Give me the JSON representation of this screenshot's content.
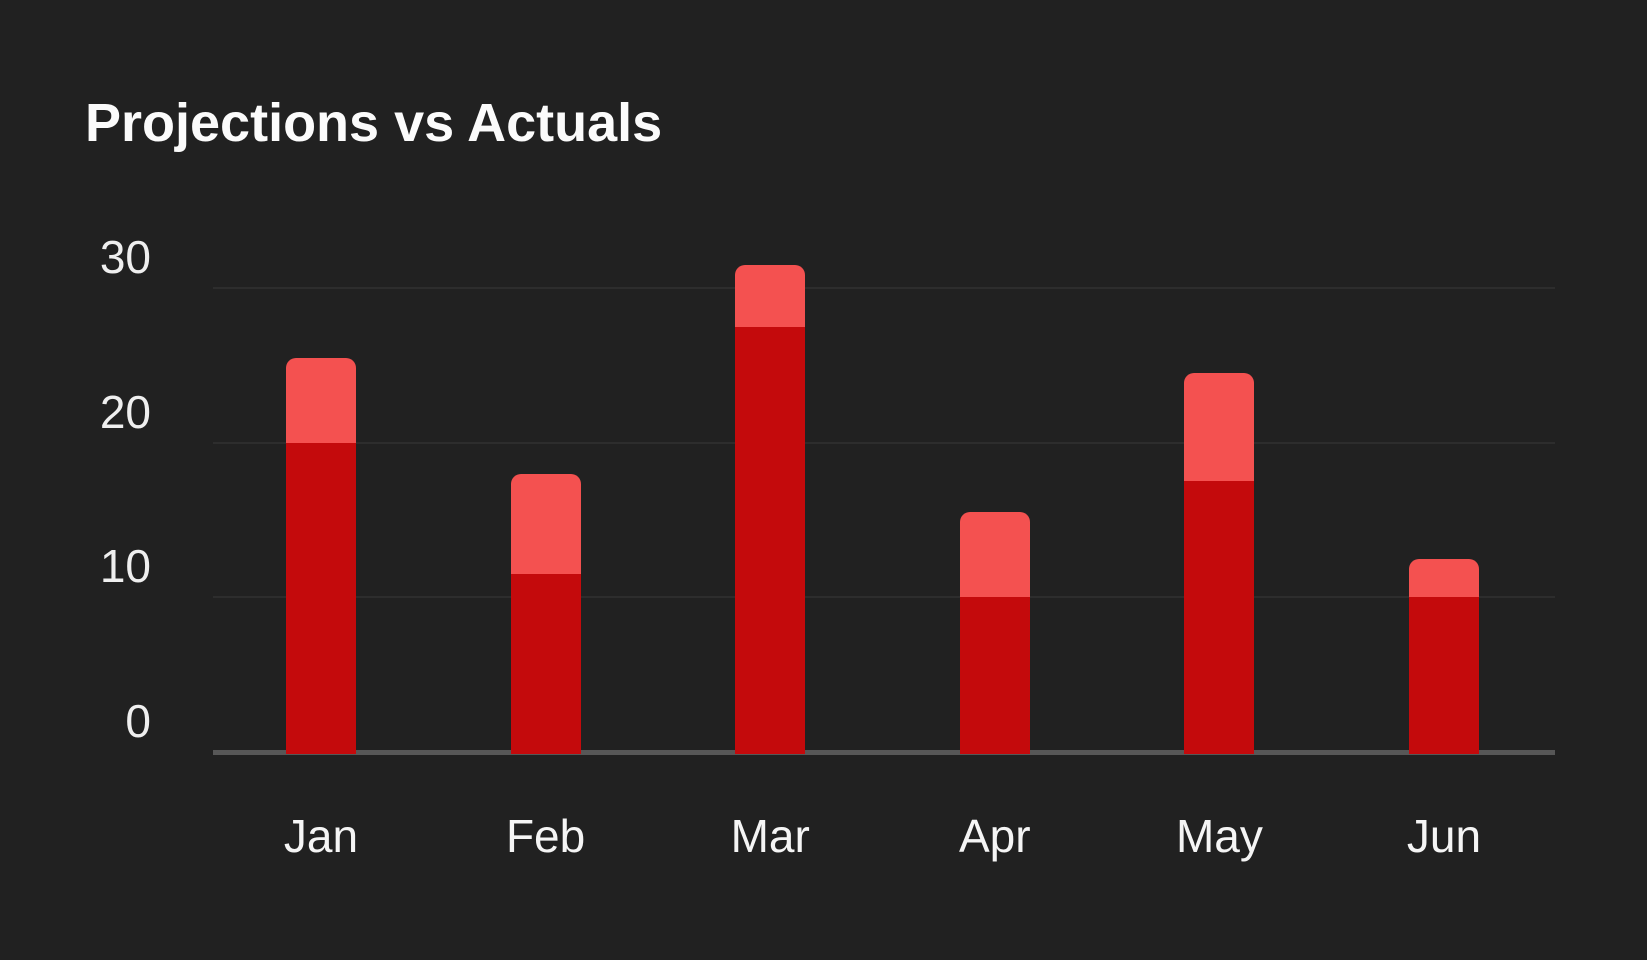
{
  "chart_data": {
    "type": "bar",
    "subtype": "overlay-stacked",
    "title": "Projections vs Actuals",
    "categories": [
      "Jan",
      "Feb",
      "Mar",
      "Apr",
      "May",
      "Jun"
    ],
    "series": [
      {
        "name": "Actuals",
        "values": [
          20,
          11.5,
          27.5,
          10,
          17.5,
          10
        ]
      },
      {
        "name": "Projections",
        "values": [
          25.5,
          18,
          31.5,
          15.5,
          24.5,
          12.5
        ]
      }
    ],
    "series_note": "Projections values are totals; lighter top segment shows projection minus actual",
    "xlabel": "",
    "ylabel": "",
    "y_ticks": [
      0,
      10,
      20,
      30
    ],
    "ylim": [
      0,
      32
    ],
    "grid": "horizontal",
    "legend": "none"
  },
  "colors": {
    "background": "#212121",
    "actual_bar": "#C40A0C",
    "projection_bar": "#F45150",
    "gridline": "#2D2D2D",
    "axis_line": "#575757",
    "title_text": "#FBFBFB",
    "tick_text": "#EFEFEF"
  }
}
